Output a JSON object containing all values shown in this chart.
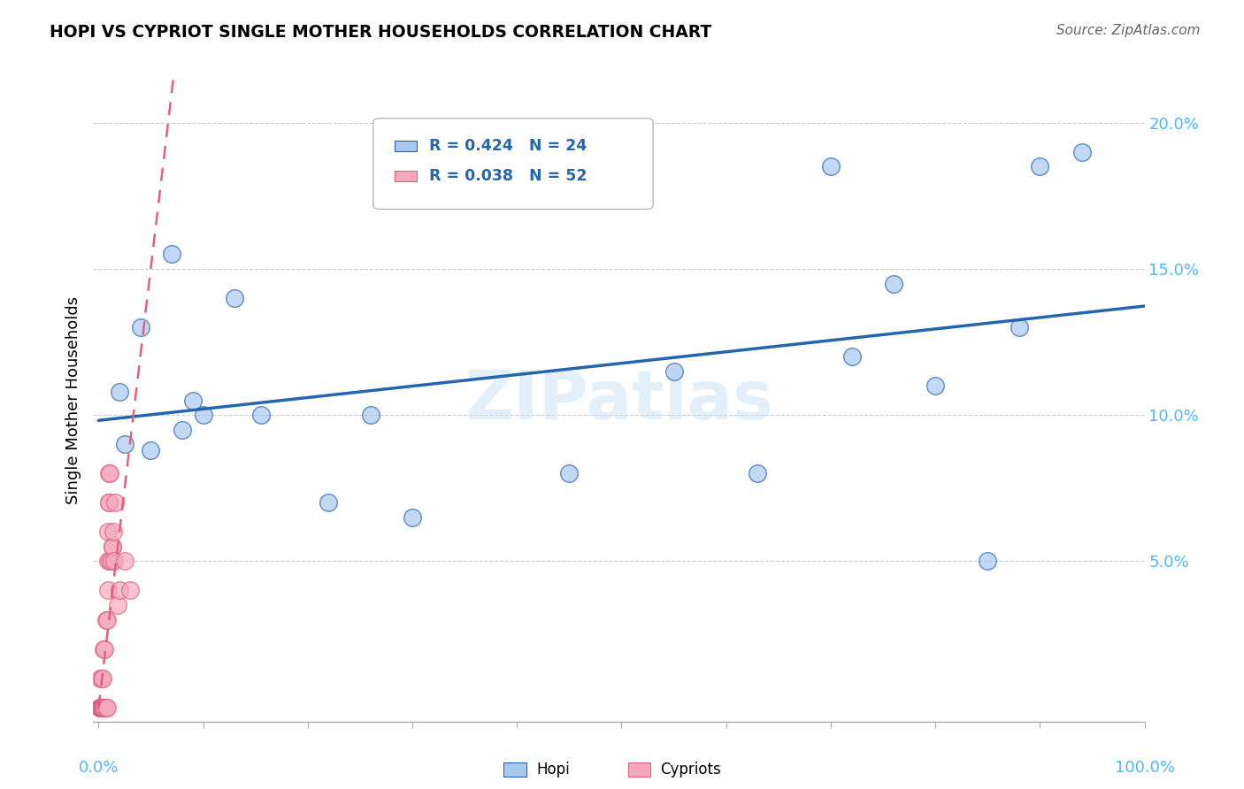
{
  "title": "HOPI VS CYPRIOT SINGLE MOTHER HOUSEHOLDS CORRELATION CHART",
  "source": "Source: ZipAtlas.com",
  "ylabel": "Single Mother Households",
  "hopi_R": 0.424,
  "hopi_N": 24,
  "cypriot_R": 0.038,
  "cypriot_N": 52,
  "hopi_color": "#a8c8f0",
  "hopi_line_color": "#2565ae",
  "cypriot_color": "#f4a8c0",
  "cypriot_line_color": "#e06080",
  "watermark": "ZIPatlas",
  "hopi_x": [
    0.02,
    0.025,
    0.04,
    0.05,
    0.07,
    0.08,
    0.09,
    0.1,
    0.13,
    0.155,
    0.22,
    0.26,
    0.3,
    0.45,
    0.55,
    0.63,
    0.7,
    0.72,
    0.76,
    0.8,
    0.85,
    0.88,
    0.9,
    0.94
  ],
  "hopi_y": [
    0.108,
    0.09,
    0.13,
    0.088,
    0.155,
    0.095,
    0.105,
    0.1,
    0.14,
    0.1,
    0.07,
    0.1,
    0.065,
    0.08,
    0.115,
    0.08,
    0.185,
    0.12,
    0.145,
    0.11,
    0.05,
    0.13,
    0.185,
    0.19
  ],
  "cypriot_x": [
    0.001,
    0.001,
    0.001,
    0.001,
    0.001,
    0.002,
    0.002,
    0.002,
    0.002,
    0.002,
    0.002,
    0.003,
    0.003,
    0.003,
    0.003,
    0.003,
    0.003,
    0.004,
    0.004,
    0.004,
    0.004,
    0.004,
    0.004,
    0.005,
    0.005,
    0.005,
    0.005,
    0.005,
    0.006,
    0.006,
    0.007,
    0.007,
    0.008,
    0.008,
    0.009,
    0.009,
    0.009,
    0.01,
    0.01,
    0.01,
    0.011,
    0.011,
    0.012,
    0.013,
    0.013,
    0.014,
    0.015,
    0.016,
    0.018,
    0.02,
    0.025,
    0.03
  ],
  "cypriot_y": [
    0.0,
    0.0,
    0.0,
    0.0,
    0.01,
    0.0,
    0.0,
    0.0,
    0.0,
    0.0,
    0.0,
    0.0,
    0.0,
    0.0,
    0.0,
    0.01,
    0.0,
    0.0,
    0.0,
    0.0,
    0.01,
    0.0,
    0.0,
    0.0,
    0.0,
    0.0,
    0.02,
    0.0,
    0.0,
    0.02,
    0.0,
    0.03,
    0.0,
    0.03,
    0.04,
    0.05,
    0.06,
    0.07,
    0.08,
    0.07,
    0.08,
    0.05,
    0.05,
    0.055,
    0.055,
    0.06,
    0.05,
    0.07,
    0.035,
    0.04,
    0.05,
    0.04
  ],
  "xlim": [
    -0.005,
    1.0
  ],
  "ylim": [
    -0.005,
    0.215
  ],
  "yticks": [
    0.0,
    0.05,
    0.1,
    0.15,
    0.2
  ],
  "ytick_labels": [
    "",
    "5.0%",
    "10.0%",
    "15.0%",
    "20.0%"
  ]
}
